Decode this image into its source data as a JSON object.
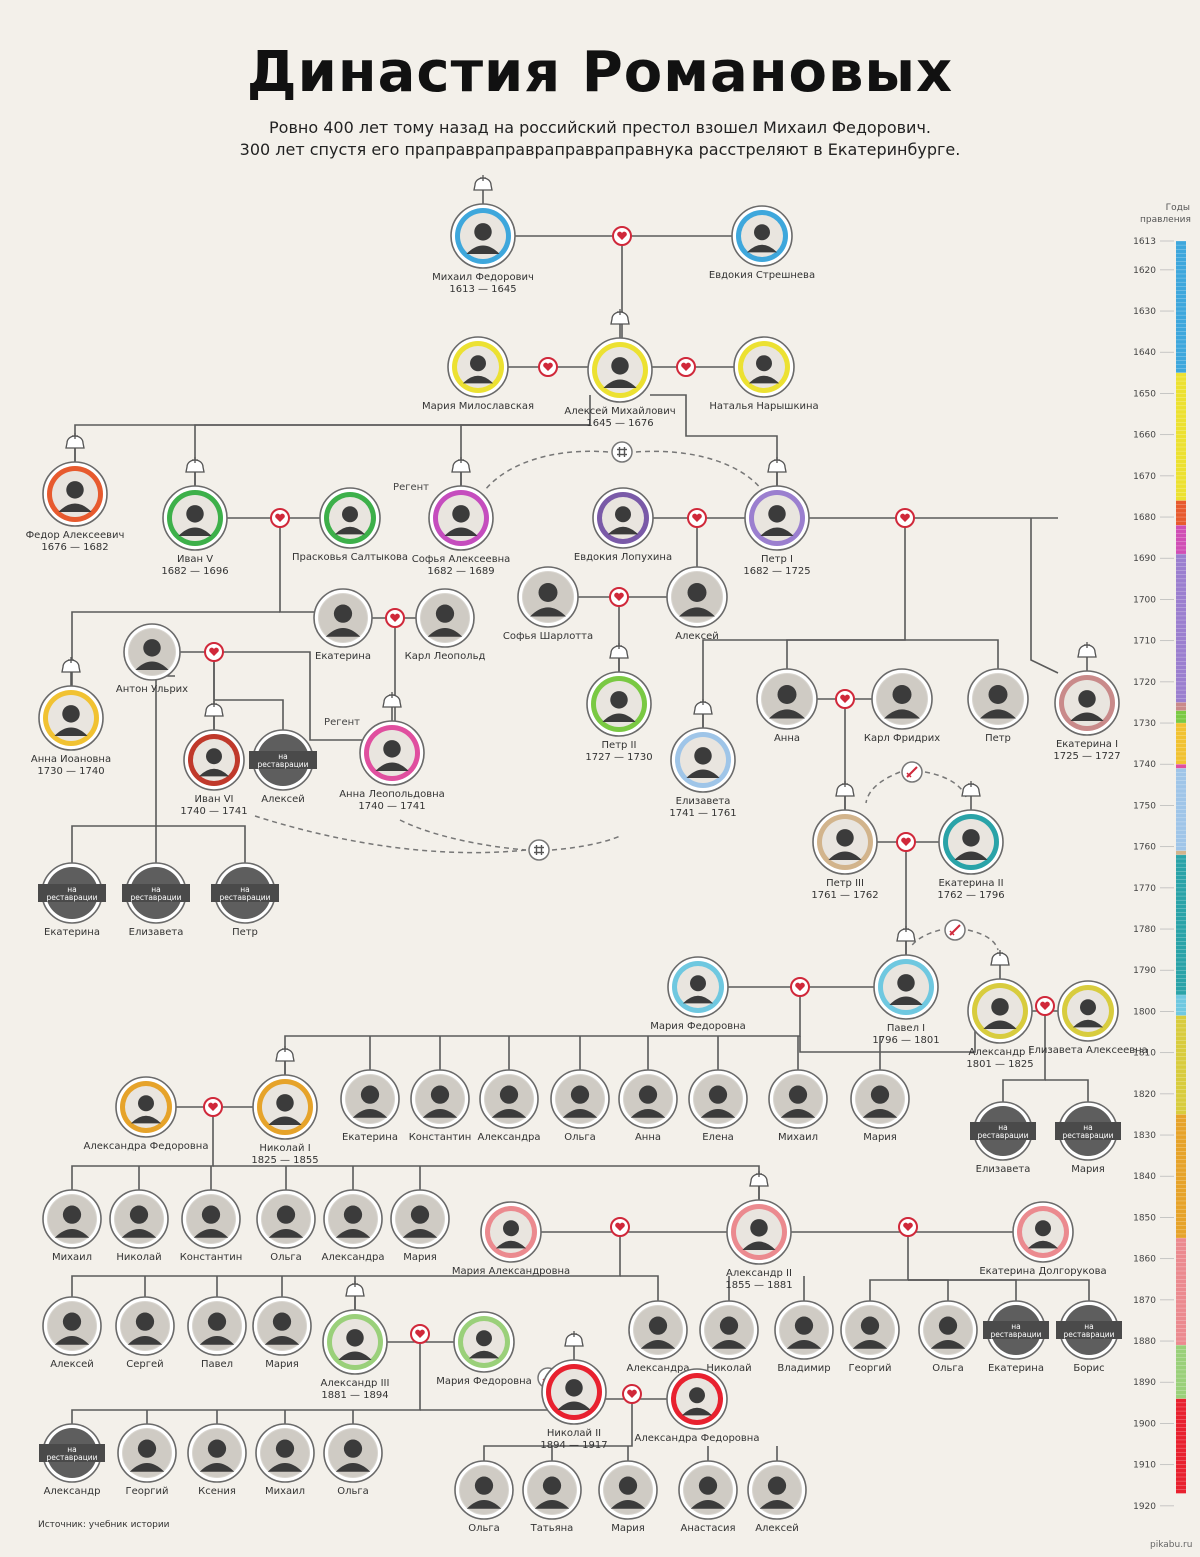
{
  "title": "Династия Романовых",
  "subtitle_line1": "Ровно 400 лет тому назад на российский престол взошел Михаил Федорович.",
  "subtitle_line2": "300 лет спустя его праправраправраправраправнука расстреляют в Екатеринбурге.",
  "source": "Источник: учебник истории",
  "watermark": "pikabu.ru",
  "scale_title": "Годы правления",
  "scale_years": [
    "1613",
    "1620",
    "1630",
    "1640",
    "1650",
    "1660",
    "1670",
    "1680",
    "1690",
    "1700",
    "1710",
    "1720",
    "1730",
    "1740",
    "1750",
    "1760",
    "1770",
    "1780",
    "1790",
    "1800",
    "1810",
    "1820",
    "1830",
    "1840",
    "1850",
    "1860",
    "1870",
    "1880",
    "1890",
    "1900",
    "1910",
    "1920"
  ],
  "restoration_text": [
    "на",
    "реставрации"
  ],
  "regent_label": "Регент",
  "colors": {
    "background": "#f3f0ea",
    "line": "#5a5a5a",
    "heart": "#d0283a",
    "ring": "#6a6a6a",
    "badge": "#5e5e5e",
    "photo": "#3b3b3b"
  },
  "scale_segments": [
    {
      "from": "1613",
      "to": "1645",
      "color": "#3ea7dc"
    },
    {
      "from": "1645",
      "to": "1676",
      "color": "#ece132"
    },
    {
      "from": "1676",
      "to": "1682",
      "color": "#e75a2e"
    },
    {
      "from": "1682",
      "to": "1689",
      "color": "#d04fb5"
    },
    {
      "from": "1689",
      "to": "1725",
      "color": "#9b7fcf"
    },
    {
      "from": "1725",
      "to": "1727",
      "color": "#c98a8a"
    },
    {
      "from": "1727",
      "to": "1730",
      "color": "#7ac943"
    },
    {
      "from": "1730",
      "to": "1740",
      "color": "#f1c232"
    },
    {
      "from": "1740",
      "to": "1741",
      "color": "#e04f9f"
    },
    {
      "from": "1741",
      "to": "1761",
      "color": "#9fc5e8"
    },
    {
      "from": "1761",
      "to": "1762",
      "color": "#d2b48c"
    },
    {
      "from": "1762",
      "to": "1796",
      "color": "#2aa3a8"
    },
    {
      "from": "1796",
      "to": "1801",
      "color": "#6fc8e0"
    },
    {
      "from": "1801",
      "to": "1825",
      "color": "#d8cc3e"
    },
    {
      "from": "1825",
      "to": "1855",
      "color": "#e6a32a"
    },
    {
      "from": "1855",
      "to": "1881",
      "color": "#eb8a8f"
    },
    {
      "from": "1881",
      "to": "1894",
      "color": "#9ad07a"
    },
    {
      "from": "1894",
      "to": "1917",
      "color": "#e8212f"
    }
  ],
  "people": [
    {
      "id": "mikhail-fedorovich",
      "name": "Михаил Федорович",
      "years": "1613 — 1645",
      "ring": "#3ea7dc",
      "crown": true
    },
    {
      "id": "evdokia-streshneva",
      "name": "Евдокия Стрешнева",
      "ring": "#3ea7dc"
    },
    {
      "id": "maria-miloslavskaya",
      "name": "Мария Милославская",
      "ring": "#ece132"
    },
    {
      "id": "aleksei-mikhailovich",
      "name": "Алексей Михайлович",
      "years": "1645 — 1676",
      "ring": "#ece132",
      "crown": true
    },
    {
      "id": "natalia-naryshkina",
      "name": "Наталья Нарышкина",
      "ring": "#ece132"
    },
    {
      "id": "fedor-alekseevich",
      "name": "Федор Алексеевич",
      "years": "1676 — 1682",
      "ring": "#e75a2e",
      "crown": true
    },
    {
      "id": "ivan-v",
      "name": "Иван V",
      "years": "1682 — 1696",
      "ring": "#3db04a",
      "crown": true
    },
    {
      "id": "praskovya-saltykova",
      "name": "Прасковья Салтыкова",
      "ring": "#3db04a"
    },
    {
      "id": "sofia-alekseevna",
      "name": "Софья Алексеевна",
      "years": "1682 — 1689",
      "ring": "#c54dbe",
      "crown": true,
      "regent": true
    },
    {
      "id": "evdokia-lopukhina",
      "name": "Евдокия Лопухина",
      "ring": "#7a5aa8"
    },
    {
      "id": "petr-i",
      "name": "Петр I",
      "years": "1682 — 1725",
      "ring": "#9b7fcf",
      "crown": true
    },
    {
      "id": "sofia-charlotta",
      "name": "Софья Шарлотта"
    },
    {
      "id": "aleksei-petrovich",
      "name": "Алексей"
    },
    {
      "id": "ekaterina-ivanovna",
      "name": "Екатерина"
    },
    {
      "id": "karl-leopold",
      "name": "Карл Леопольд"
    },
    {
      "id": "anton-ulrikh",
      "name": "Антон Ульрих"
    },
    {
      "id": "petr-ii",
      "name": "Петр II",
      "years": "1727 — 1730",
      "ring": "#7ac943",
      "crown": true
    },
    {
      "id": "anna-ioannovna",
      "name": "Анна Иоановна",
      "years": "1730 — 1740",
      "ring": "#f1c232",
      "crown": true
    },
    {
      "id": "ivan-vi",
      "name": "Иван VI",
      "years": "1740 — 1741",
      "ring": "#c0392b",
      "crown": true
    },
    {
      "id": "aleksei-antonovich",
      "name": "Алексей",
      "restoration": true
    },
    {
      "id": "anna-leopoldovna",
      "name": "Анна Леопольдовна",
      "years": "1740 — 1741",
      "ring": "#e04f9f",
      "crown": true,
      "regent": true
    },
    {
      "id": "elizaveta-petrovna",
      "name": "Елизавета",
      "years": "1741 — 1761",
      "ring": "#9fc5e8",
      "crown": true
    },
    {
      "id": "anna-petrovna",
      "name": "Анна"
    },
    {
      "id": "karl-fridrikh",
      "name": "Карл Фридрих"
    },
    {
      "id": "petr-petrovich",
      "name": "Петр"
    },
    {
      "id": "ekaterina-i",
      "name": "Екатерина I",
      "years": "1725 — 1727",
      "ring": "#c98a8a",
      "crown": true
    },
    {
      "id": "ekaterina-antonovna",
      "name": "Екатерина",
      "restoration": true
    },
    {
      "id": "elizaveta-antonovna",
      "name": "Елизавета",
      "restoration": true
    },
    {
      "id": "petr-antonovich",
      "name": "Петр",
      "restoration": true
    },
    {
      "id": "petr-iii",
      "name": "Петр III",
      "years": "1761 — 1762",
      "ring": "#d2b48c",
      "crown": true
    },
    {
      "id": "ekaterina-ii",
      "name": "Екатерина II",
      "years": "1762 — 1796",
      "ring": "#2aa3a8",
      "crown": true
    },
    {
      "id": "maria-fedorovna-1",
      "name": "Мария Федоровна",
      "ring": "#6fc8e0"
    },
    {
      "id": "pavel-i",
      "name": "Павел I",
      "years": "1796 — 1801",
      "ring": "#6fc8e0",
      "crown": true
    },
    {
      "id": "aleksandr-i",
      "name": "Александр I",
      "years": "1801 — 1825",
      "ring": "#d8cc3e",
      "crown": true
    },
    {
      "id": "elizaveta-alekseevna",
      "name": "Елизавета Алексеевна",
      "ring": "#d8cc3e"
    },
    {
      "id": "ekaterina-pavlovna",
      "name": "Екатерина"
    },
    {
      "id": "konstantin-pavlovich",
      "name": "Константин"
    },
    {
      "id": "aleksandra-pavlovna",
      "name": "Александра"
    },
    {
      "id": "olga-pavlovna",
      "name": "Ольга"
    },
    {
      "id": "anna-pavlovna",
      "name": "Анна"
    },
    {
      "id": "elena-pavlovna",
      "name": "Елена"
    },
    {
      "id": "mikhail-pavlovich",
      "name": "Михаил"
    },
    {
      "id": "maria-pavlovna",
      "name": "Мария"
    },
    {
      "id": "elizaveta-aleksandrovna",
      "name": "Елизавета",
      "restoration": true
    },
    {
      "id": "maria-aleksandrovna-1",
      "name": "Мария",
      "restoration": true
    },
    {
      "id": "aleksandra-fedorovna-1",
      "name": "Александра Федоровна",
      "ring": "#e6a32a"
    },
    {
      "id": "nikolai-i",
      "name": "Николай I",
      "years": "1825 — 1855",
      "ring": "#e6a32a",
      "crown": true
    },
    {
      "id": "mikhail-nikolaevich",
      "name": "Михаил"
    },
    {
      "id": "nikolai-nikolaevich",
      "name": "Николай"
    },
    {
      "id": "konstantin-nikolaevich",
      "name": "Константин"
    },
    {
      "id": "olga-nikolaevna",
      "name": "Ольга"
    },
    {
      "id": "aleksandra-nikolaevna",
      "name": "Александра"
    },
    {
      "id": "maria-nikolaevna",
      "name": "Мария"
    },
    {
      "id": "maria-aleksandrovna",
      "name": "Мария Александровна",
      "ring": "#eb8a8f"
    },
    {
      "id": "aleksandr-ii",
      "name": "Александр II",
      "years": "1855 — 1881",
      "ring": "#eb8a8f",
      "crown": true
    },
    {
      "id": "ekaterina-dolgorukova",
      "name": "Екатерина Долгорукова",
      "ring": "#eb8a8f"
    },
    {
      "id": "aleksei-aleksandrovich",
      "name": "Алексей"
    },
    {
      "id": "sergei-aleksandrovich",
      "name": "Сергей"
    },
    {
      "id": "pavel-aleksandrovich",
      "name": "Павел"
    },
    {
      "id": "maria-aleksandrovna-2",
      "name": "Мария"
    },
    {
      "id": "aleksandr-iii",
      "name": "Александр III",
      "years": "1881 — 1894",
      "ring": "#9ad07a",
      "crown": true
    },
    {
      "id": "maria-fedorovna-2",
      "name": "Мария Федоровна",
      "ring": "#9ad07a"
    },
    {
      "id": "aleksandra-aleksandrovna",
      "name": "Александра"
    },
    {
      "id": "nikolai-aleksandrovich",
      "name": "Николай"
    },
    {
      "id": "vladimir-aleksandrovich",
      "name": "Владимир"
    },
    {
      "id": "georgii-yurevskii",
      "name": "Георгий"
    },
    {
      "id": "olga-yurevskaya",
      "name": "Ольга"
    },
    {
      "id": "ekaterina-yurevskaya",
      "name": "Екатерина",
      "restoration": true
    },
    {
      "id": "boris-yurevskii",
      "name": "Борис",
      "restoration": true
    },
    {
      "id": "nikolai-ii",
      "name": "Николай II",
      "years": "1894 — 1917",
      "ring": "#e8212f",
      "crown": true
    },
    {
      "id": "aleksandra-fedorovna-2",
      "name": "Александра Федоровна",
      "ring": "#e8212f"
    },
    {
      "id": "aleksandr-aleksandrovich",
      "name": "Александр",
      "restoration": true
    },
    {
      "id": "georgii-aleksandrovich",
      "name": "Георгий"
    },
    {
      "id": "ksenia-aleksandrovna",
      "name": "Ксения"
    },
    {
      "id": "mikhail-aleksandrovich",
      "name": "Михаил"
    },
    {
      "id": "olga-aleksandrovna",
      "name": "Ольга"
    },
    {
      "id": "olga-nikolaevna-2",
      "name": "Ольга"
    },
    {
      "id": "tatiana-nikolaevna",
      "name": "Татьяна"
    },
    {
      "id": "maria-nikolaevna-2",
      "name": "Мария"
    },
    {
      "id": "anastasia-nikolaevna",
      "name": "Анастасия"
    },
    {
      "id": "aleksei-nikolaevich",
      "name": "Алексей"
    }
  ]
}
